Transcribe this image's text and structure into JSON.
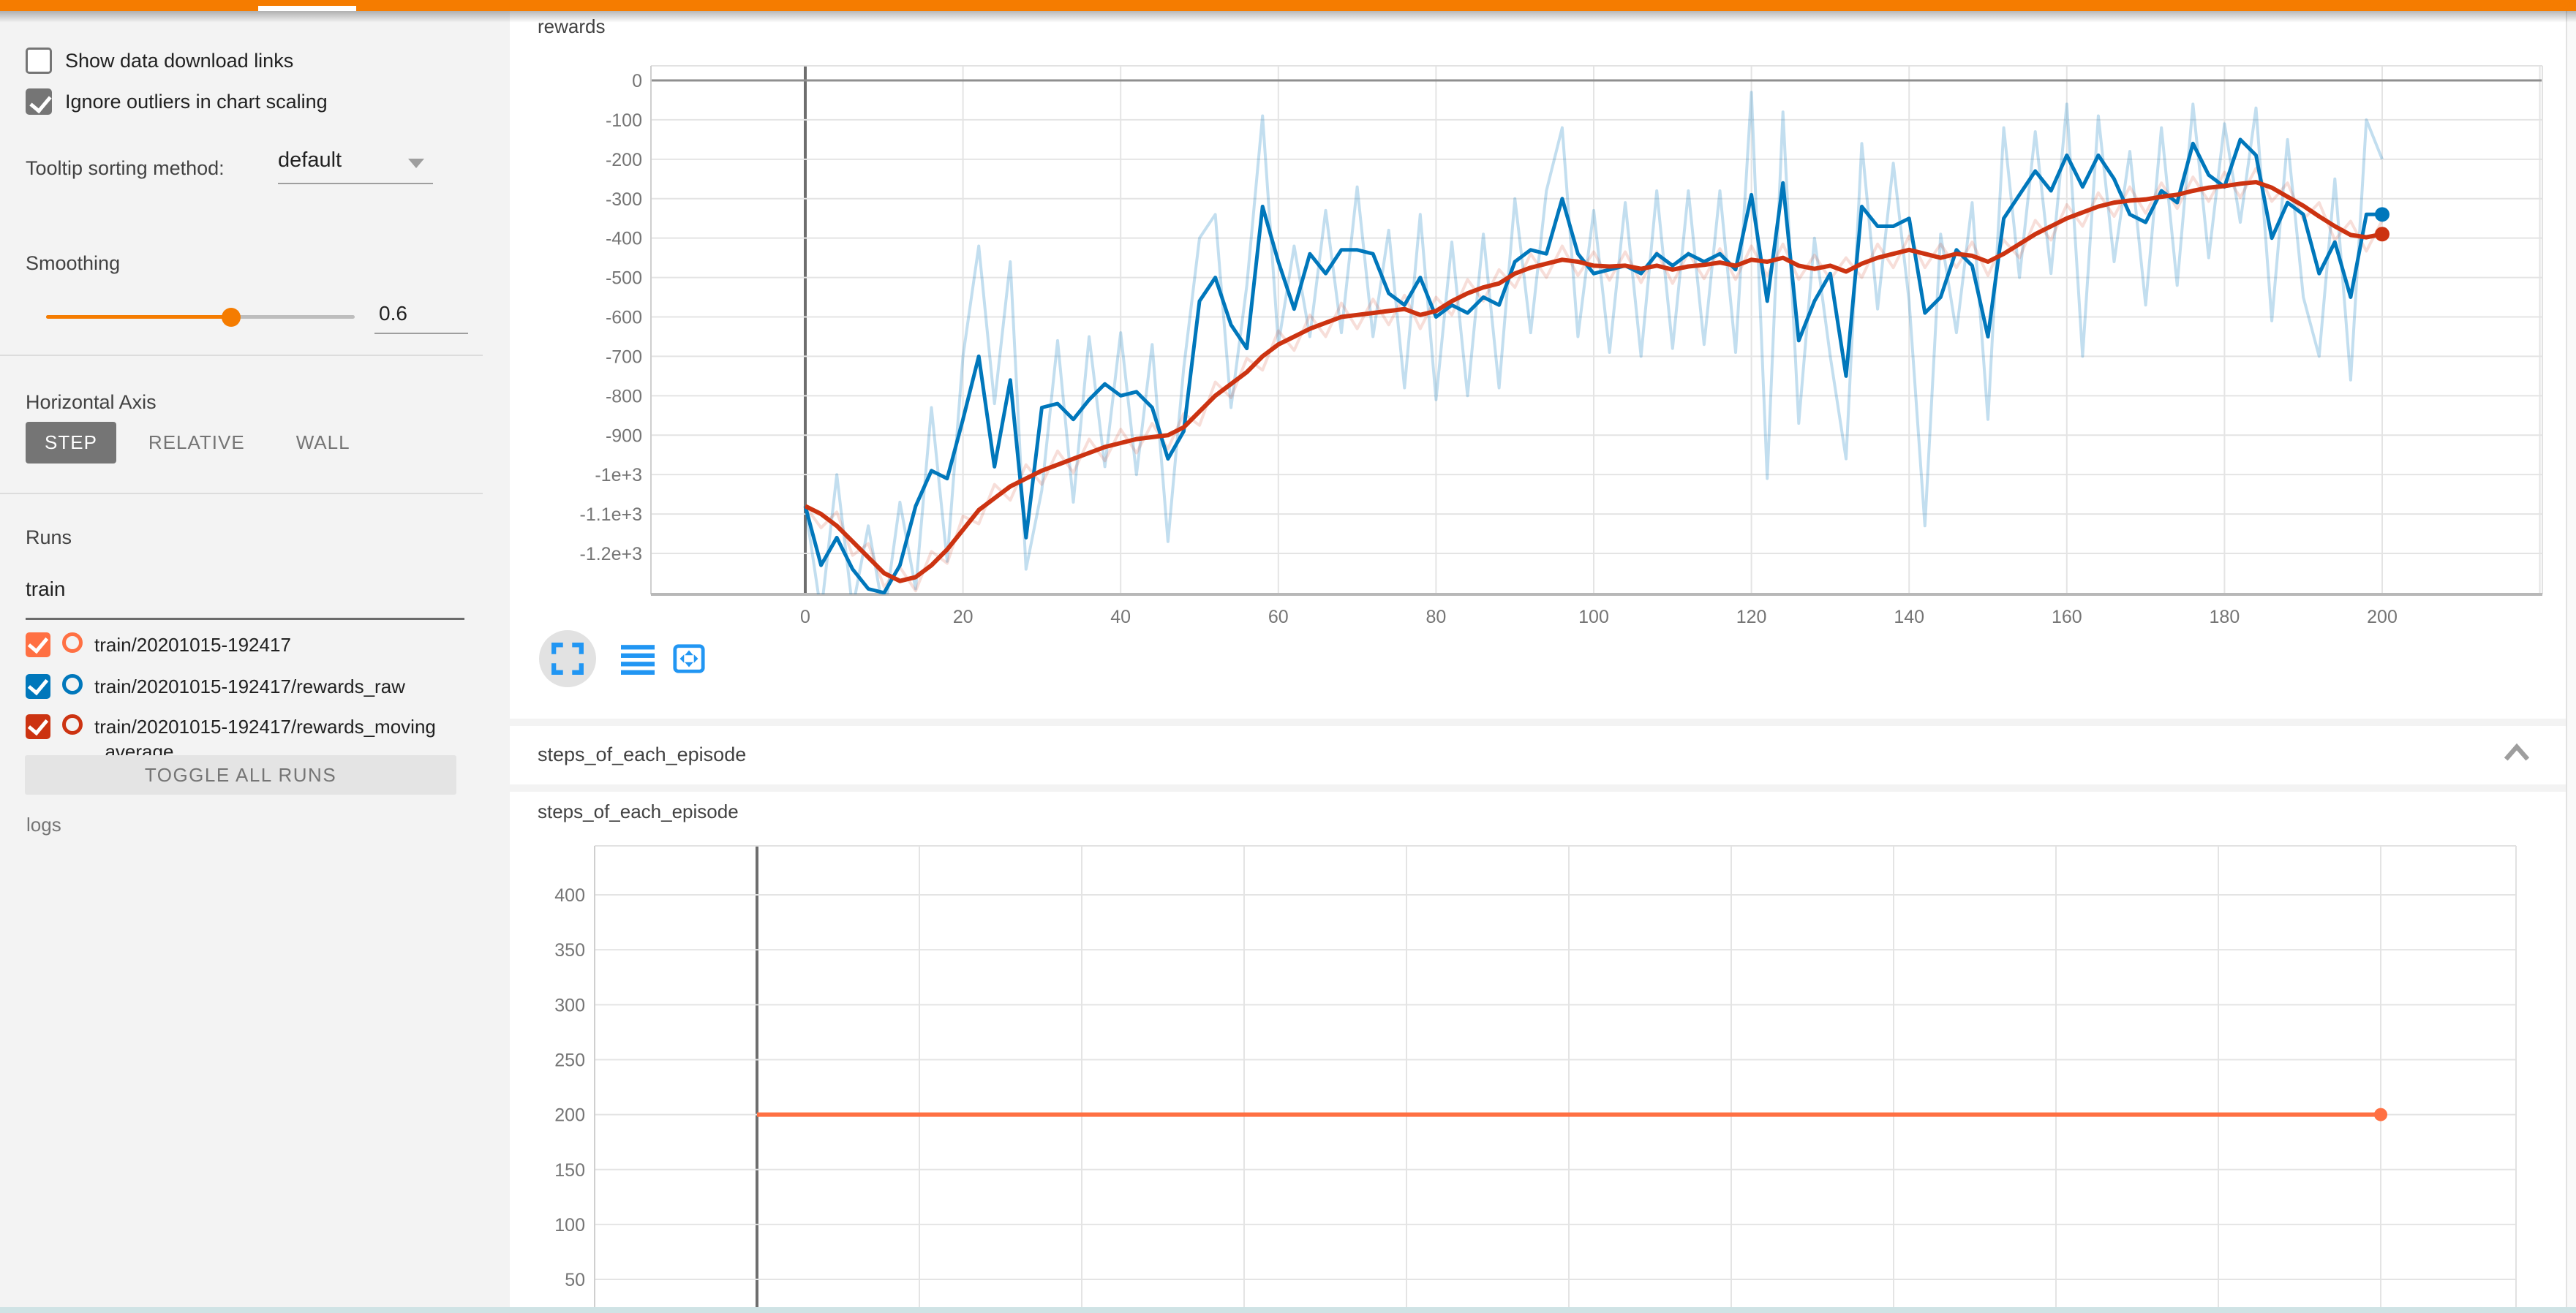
{
  "header": {
    "accent_color": "#f57c00",
    "active_tab_indicator": true
  },
  "sidebar": {
    "checkboxes": [
      {
        "label": "Show data download links",
        "checked": false
      },
      {
        "label": "Ignore outliers in chart scaling",
        "checked": true
      }
    ],
    "tooltip_sorting": {
      "label": "Tooltip sorting method:",
      "value": "default"
    },
    "smoothing": {
      "label": "Smoothing",
      "value": "0.6",
      "fraction": 0.6,
      "accent_color": "#f57c00"
    },
    "horizontal_axis": {
      "label": "Horizontal Axis",
      "options": [
        "STEP",
        "RELATIVE",
        "WALL"
      ],
      "selected": "STEP"
    },
    "runs": {
      "label": "Runs",
      "filter_value": "train",
      "items": [
        {
          "label": "train/20201015-192417",
          "color": "#ff7043",
          "checked": true
        },
        {
          "label": "train/20201015-192417/rewards_raw",
          "color": "#0077bb",
          "checked": true
        },
        {
          "label": "train/20201015-192417/rewards_moving_average",
          "color": "#cc3311",
          "checked": true
        }
      ],
      "toggle_button": "TOGGLE ALL RUNS",
      "footer": "logs"
    }
  },
  "main": {
    "section_header": {
      "title": "steps_of_each_episode",
      "chevron": "chevron-up-icon"
    },
    "toolbar_icons": [
      "expand-icon",
      "data-table-icon",
      "fit-domain-icon"
    ],
    "icon_color": "#2196f3"
  },
  "chart_data": [
    {
      "type": "line",
      "title": "rewards",
      "xlabel": "step",
      "xlim": [
        -19.6,
        220.3
      ],
      "ylim": [
        -1304,
        37
      ],
      "grid": true,
      "legend_position": "none",
      "xticks": [
        0,
        20,
        40,
        60,
        80,
        100,
        120,
        140,
        160,
        180,
        200
      ],
      "x_grid_extra": [
        220
      ],
      "yticks": {
        "values": [
          0,
          -100,
          -200,
          -300,
          -400,
          -500,
          -600,
          -700,
          -800,
          -900,
          -1000,
          -1100,
          -1200
        ],
        "labels": [
          "0",
          "-100",
          "-200",
          "-300",
          "-400",
          "-500",
          "-600",
          "-700",
          "-800",
          "-900",
          "-1e+3",
          "-1.1e+3",
          "-1.2e+3"
        ]
      },
      "emphasized_y": 0,
      "emphasized_x": 0,
      "x_start": 0,
      "x_step": 2,
      "series": [
        {
          "name": "train/20201015-192417/rewards_raw (raw)",
          "color": "rgba(0,119,187,0.24)",
          "width": 4,
          "values": [
            -1080,
            -1350,
            -1000,
            -1340,
            -1130,
            -1360,
            -1070,
            -1290,
            -830,
            -1220,
            -700,
            -420,
            -820,
            -460,
            -1240,
            -1040,
            -660,
            -1070,
            -650,
            -980,
            -640,
            -1000,
            -670,
            -1170,
            -730,
            -400,
            -340,
            -830,
            -520,
            -90,
            -670,
            -420,
            -650,
            -330,
            -640,
            -270,
            -650,
            -380,
            -780,
            -340,
            -810,
            -410,
            -800,
            -390,
            -780,
            -300,
            -640,
            -280,
            -120,
            -650,
            -330,
            -690,
            -310,
            -700,
            -280,
            -680,
            -280,
            -670,
            -280,
            -690,
            -30,
            -1010,
            -80,
            -870,
            -400,
            -700,
            -960,
            -160,
            -580,
            -210,
            -560,
            -1130,
            -390,
            -640,
            -310,
            -860,
            -120,
            -500,
            -130,
            -490,
            -60,
            -700,
            -90,
            -460,
            -180,
            -570,
            -120,
            -520,
            -60,
            -450,
            -110,
            -360,
            -70,
            -610,
            -150,
            -550,
            -700,
            -250,
            -760,
            -100,
            -200
          ]
        },
        {
          "name": "train/20201015-192417/rewards_moving_average (raw)",
          "color": "rgba(204,51,17,0.16)",
          "width": 4,
          "values": [
            -1080,
            -1135,
            -1095,
            -1205,
            -1175,
            -1285,
            -1235,
            -1295,
            -1195,
            -1225,
            -1105,
            -1125,
            -1025,
            -1065,
            -975,
            -1025,
            -940,
            -995,
            -910,
            -965,
            -885,
            -945,
            -870,
            -935,
            -845,
            -875,
            -765,
            -805,
            -705,
            -735,
            -635,
            -685,
            -595,
            -650,
            -565,
            -630,
            -555,
            -620,
            -545,
            -630,
            -550,
            -595,
            -505,
            -560,
            -480,
            -525,
            -440,
            -500,
            -420,
            -495,
            -435,
            -507,
            -435,
            -513,
            -435,
            -515,
            -437,
            -503,
            -427,
            -505,
            -420,
            -495,
            -415,
            -505,
            -443,
            -505,
            -450,
            -500,
            -415,
            -475,
            -395,
            -475,
            -415,
            -475,
            -410,
            -495,
            -405,
            -450,
            -355,
            -405,
            -315,
            -370,
            -285,
            -345,
            -270,
            -337,
            -260,
            -325,
            -245,
            -307,
            -233,
            -297,
            -223,
            -307,
            -260,
            -353,
            -310,
            -405,
            -357,
            -433,
            -355
          ]
        },
        {
          "name": "train/20201015-192417/rewards_raw (smoothed)",
          "color": "#0077bb",
          "width": 5,
          "end_dot": 10,
          "values": [
            -1080,
            -1230,
            -1160,
            -1240,
            -1290,
            -1300,
            -1230,
            -1080,
            -990,
            -1010,
            -860,
            -700,
            -980,
            -760,
            -1160,
            -830,
            -820,
            -860,
            -810,
            -770,
            -800,
            -790,
            -830,
            -960,
            -890,
            -560,
            -500,
            -620,
            -680,
            -320,
            -460,
            -580,
            -440,
            -490,
            -430,
            -430,
            -440,
            -540,
            -570,
            -500,
            -600,
            -570,
            -590,
            -550,
            -570,
            -460,
            -430,
            -440,
            -300,
            -440,
            -490,
            -480,
            -470,
            -490,
            -440,
            -470,
            -440,
            -460,
            -440,
            -480,
            -290,
            -560,
            -260,
            -660,
            -560,
            -490,
            -750,
            -320,
            -370,
            -370,
            -350,
            -590,
            -550,
            -430,
            -470,
            -650,
            -350,
            -290,
            -230,
            -280,
            -190,
            -270,
            -190,
            -250,
            -340,
            -360,
            -280,
            -310,
            -160,
            -240,
            -270,
            -150,
            -190,
            -400,
            -310,
            -340,
            -490,
            -410,
            -550,
            -340,
            -340
          ]
        },
        {
          "name": "train/20201015-192417/rewards_moving_average (smoothed)",
          "color": "#cc3311",
          "width": 6,
          "end_dot": 10,
          "values": [
            -1080,
            -1100,
            -1130,
            -1170,
            -1210,
            -1250,
            -1270,
            -1260,
            -1230,
            -1190,
            -1140,
            -1090,
            -1060,
            -1030,
            -1010,
            -990,
            -975,
            -960,
            -945,
            -930,
            -920,
            -910,
            -905,
            -900,
            -880,
            -840,
            -800,
            -770,
            -740,
            -700,
            -670,
            -650,
            -630,
            -615,
            -600,
            -595,
            -590,
            -585,
            -580,
            -595,
            -585,
            -560,
            -540,
            -525,
            -515,
            -490,
            -475,
            -465,
            -455,
            -460,
            -470,
            -472,
            -470,
            -478,
            -470,
            -480,
            -472,
            -468,
            -462,
            -470,
            -455,
            -460,
            -450,
            -470,
            -478,
            -470,
            -485,
            -465,
            -450,
            -440,
            -430,
            -440,
            -450,
            -440,
            -445,
            -460,
            -440,
            -415,
            -390,
            -370,
            -350,
            -335,
            -320,
            -310,
            -305,
            -302,
            -295,
            -290,
            -280,
            -272,
            -268,
            -262,
            -258,
            -272,
            -295,
            -318,
            -345,
            -370,
            -392,
            -398,
            -390
          ]
        }
      ]
    },
    {
      "type": "line",
      "title": "steps_of_each_episode",
      "xlabel": "step",
      "xlim": [
        -20,
        216.7
      ],
      "ylim": [
        19,
        445
      ],
      "grid": true,
      "legend_position": "none",
      "xticks": [],
      "x_grid_extra": [
        0,
        20,
        40,
        60,
        80,
        100,
        120,
        140,
        160,
        180,
        200,
        220
      ],
      "yticks": {
        "values": [
          400,
          350,
          300,
          250,
          200,
          150,
          100,
          50
        ],
        "labels": [
          "400",
          "350",
          "300",
          "250",
          "200",
          "150",
          "100",
          "50"
        ]
      },
      "emphasized_x": 0,
      "series": [
        {
          "name": "train/20201015-192417",
          "color": "#ff7043",
          "width": 6,
          "end_dot": 9,
          "x": [
            0,
            200
          ],
          "values": [
            200,
            200
          ]
        }
      ]
    }
  ]
}
